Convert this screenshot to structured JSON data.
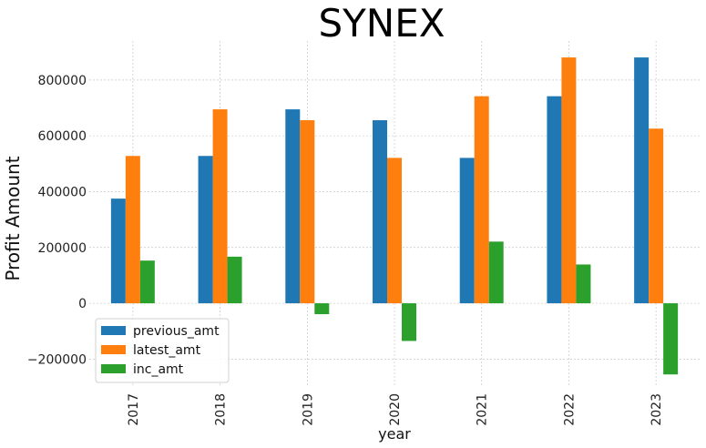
{
  "chart_data": {
    "type": "bar",
    "title": "SYNEX",
    "xlabel": "year",
    "ylabel": "Profit Amount",
    "categories": [
      "2017",
      "2018",
      "2019",
      "2020",
      "2021",
      "2022",
      "2023"
    ],
    "series": [
      {
        "name": "previous_amt",
        "color": "#1f77b4",
        "values": [
          375000,
          528000,
          695000,
          656000,
          521000,
          742000,
          881000
        ]
      },
      {
        "name": "latest_amt",
        "color": "#ff7f0e",
        "values": [
          528000,
          695000,
          656000,
          521000,
          742000,
          881000,
          626000
        ]
      },
      {
        "name": "inc_amt",
        "color": "#2ca02c",
        "values": [
          153000,
          167000,
          -39000,
          -135000,
          221000,
          139000,
          -255000
        ]
      }
    ],
    "ylim": [
      -300000,
      940000
    ],
    "yticks": [
      -200000,
      0,
      200000,
      400000,
      600000,
      800000
    ],
    "ytick_labels": [
      "−200000",
      "0",
      "200000",
      "400000",
      "600000",
      "800000"
    ],
    "grid": true,
    "legend_position": "lower-left"
  }
}
